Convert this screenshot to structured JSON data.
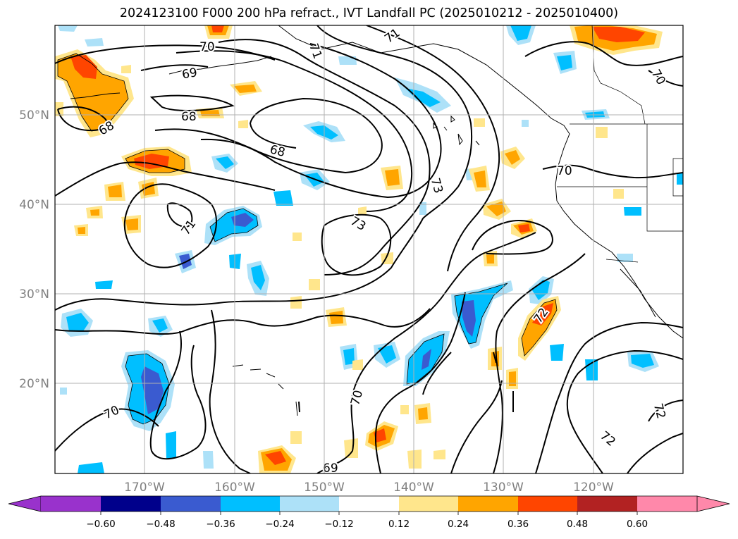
{
  "title": "2024123100 F000 200 hPa refract., IVT Landfall PC (2025010212 - 2025010400)",
  "colors": {
    "neg_extend": "#9932cc",
    "neg_060": "#00008b",
    "neg_048": "#3a5bd0",
    "neg_036": "#00bfff",
    "neg_024": "#ade1f8",
    "neutral": "#ffffff",
    "pos_012": "#ffe68c",
    "pos_024": "#ffa500",
    "pos_036": "#ff4500",
    "pos_048": "#b22222",
    "pos_extend": "#ff88aa",
    "grid": "#b0b0b0",
    "tick_label": "#808080"
  },
  "map": {
    "lon_range": [
      -180,
      -110
    ],
    "lat_range": [
      10,
      60
    ],
    "lon_ticks": [
      "170°W",
      "160°W",
      "150°W",
      "140°W",
      "130°W",
      "120°W"
    ],
    "lat_ticks": [
      "20°N",
      "30°N",
      "40°N",
      "50°N"
    ],
    "contour_labels": [
      "70",
      "69",
      "68",
      "68",
      "68",
      "71",
      "71",
      "73",
      "73",
      "70",
      "71",
      "70",
      "70",
      "72",
      "72",
      "69",
      "72",
      "70"
    ]
  },
  "colorbar": {
    "ticks": [
      "−0.60",
      "−0.48",
      "−0.36",
      "−0.24",
      "−0.12",
      "0.12",
      "0.24",
      "0.36",
      "0.48",
      "0.60"
    ]
  }
}
